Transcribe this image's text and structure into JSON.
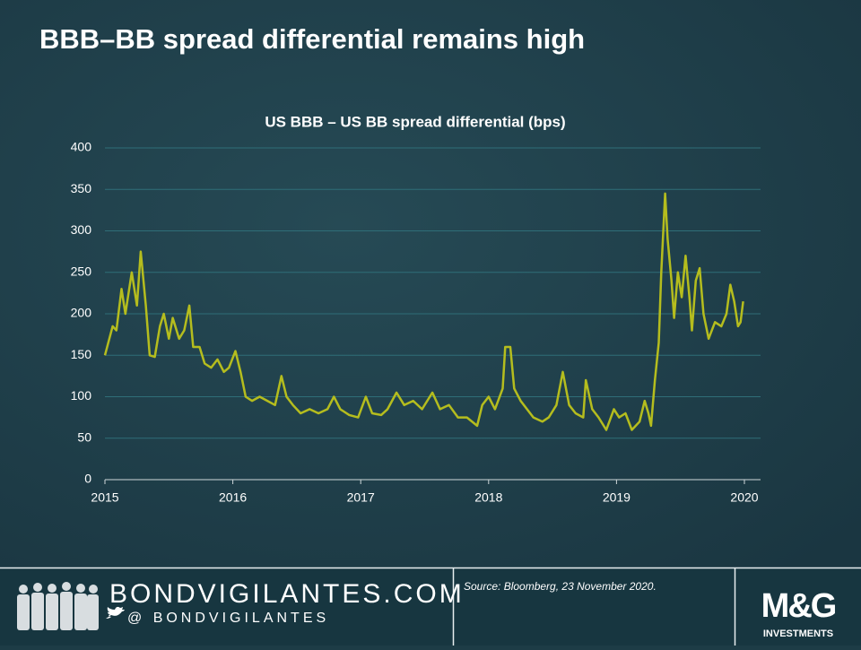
{
  "chart_data": {
    "type": "line",
    "slide_title": "BBB–BB spread differential remains high",
    "title": "US BBB – US BB spread differential (bps)",
    "xlim": [
      2015,
      2020
    ],
    "xticks": [
      2015,
      2016,
      2017,
      2018,
      2019,
      2020
    ],
    "ylim": [
      0,
      400
    ],
    "yticks": [
      0,
      50,
      100,
      150,
      200,
      250,
      300,
      350,
      400
    ],
    "grid": true,
    "x": [
      2015.0,
      2015.06,
      2015.09,
      2015.13,
      2015.16,
      2015.21,
      2015.25,
      2015.28,
      2015.32,
      2015.35,
      2015.39,
      2015.43,
      2015.46,
      2015.5,
      2015.53,
      2015.58,
      2015.62,
      2015.66,
      2015.69,
      2015.74,
      2015.78,
      2015.83,
      2015.88,
      2015.93,
      2015.97,
      2016.02,
      2016.06,
      2016.1,
      2016.15,
      2016.21,
      2016.27,
      2016.33,
      2016.38,
      2016.42,
      2016.47,
      2016.53,
      2016.6,
      2016.67,
      2016.74,
      2016.79,
      2016.84,
      2016.91,
      2016.98,
      2017.04,
      2017.09,
      2017.16,
      2017.21,
      2017.28,
      2017.34,
      2017.41,
      2017.48,
      2017.56,
      2017.62,
      2017.69,
      2017.76,
      2017.83,
      2017.91,
      2017.95,
      2018.0,
      2018.05,
      2018.11,
      2018.13,
      2018.17,
      2018.2,
      2018.25,
      2018.3,
      2018.35,
      2018.42,
      2018.47,
      2018.53,
      2018.58,
      2018.63,
      2018.68,
      2018.74,
      2018.76,
      2018.81,
      2018.86,
      2018.92,
      2018.98,
      2019.02,
      2019.07,
      2019.12,
      2019.18,
      2019.22,
      2019.25,
      2019.27,
      2019.3,
      2019.33,
      2019.35,
      2019.38,
      2019.4,
      2019.43,
      2019.45,
      2019.48,
      2019.51,
      2019.54,
      2019.57,
      2019.59,
      2019.62,
      2019.65,
      2019.68,
      2019.72,
      2019.77,
      2019.82,
      2019.86,
      2019.89,
      2019.92,
      2019.95,
      2019.97,
      2019.99
    ],
    "series": [
      {
        "name": "US BBB – US BB spread differential",
        "color": "#b5bd1e",
        "values": [
          150,
          185,
          180,
          230,
          200,
          250,
          210,
          275,
          210,
          150,
          148,
          185,
          200,
          170,
          195,
          170,
          180,
          210,
          160,
          160,
          140,
          135,
          145,
          130,
          135,
          155,
          130,
          100,
          95,
          100,
          95,
          90,
          125,
          100,
          90,
          80,
          85,
          80,
          85,
          100,
          85,
          78,
          75,
          100,
          80,
          78,
          85,
          105,
          90,
          95,
          85,
          105,
          85,
          90,
          75,
          75,
          65,
          90,
          100,
          85,
          110,
          160,
          160,
          110,
          95,
          85,
          75,
          70,
          75,
          90,
          130,
          90,
          80,
          75,
          120,
          85,
          75,
          60,
          85,
          75,
          80,
          60,
          70,
          95,
          80,
          65,
          120,
          165,
          250,
          345,
          290,
          240,
          195,
          250,
          220,
          270,
          220,
          180,
          240,
          255,
          200,
          170,
          190,
          185,
          200,
          235,
          215,
          185,
          190,
          215
        ]
      }
    ]
  },
  "footer": {
    "site": "BONDVIGILANTES.COM",
    "handle": "@ BONDVIGILANTES",
    "source": "Source: Bloomberg, 23 November 2020.",
    "logo": "M&G",
    "logo_sub": "INVESTMENTS"
  }
}
